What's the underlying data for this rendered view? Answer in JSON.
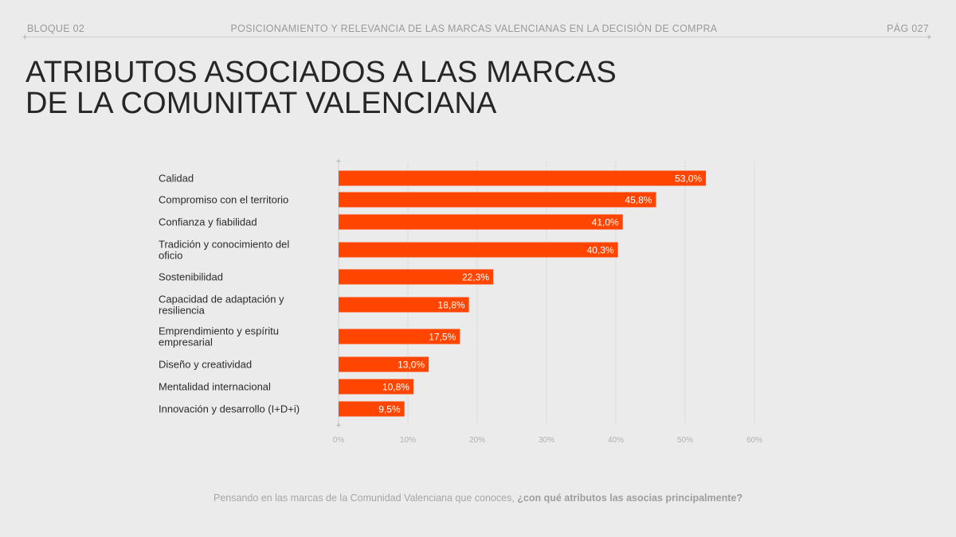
{
  "header": {
    "left": "BLOQUE 02",
    "center": "POSICIONAMIENTO Y RELEVANCIA DE LAS MARCAS VALENCIANAS EN LA DECISIÓN DE COMPRA",
    "right": "PÁG 027"
  },
  "title": {
    "line1": "ATRIBUTOS ASOCIADOS A LAS MARCAS",
    "line2": "DE LA COMUNITAT VALENCIANA"
  },
  "footnote": {
    "plain": "Pensando en las marcas de la Comunidad Valenciana que conoces, ",
    "bold": "¿con qué atributos las asocias principalmente?"
  },
  "colors": {
    "bar": "#ff4500",
    "bar_label": "#ffffff",
    "category_text": "#2b2b2b",
    "tick_text": "#b0b0b0",
    "grid": "#dedede"
  },
  "chart_data": {
    "type": "bar",
    "orientation": "horizontal",
    "categories": [
      [
        "Calidad"
      ],
      [
        "Compromiso con el territorio"
      ],
      [
        "Confianza y fiabilidad"
      ],
      [
        "Tradición y conocimiento del",
        "oficio"
      ],
      [
        "Sostenibilidad"
      ],
      [
        "Capacidad de adaptación y",
        "resiliencia"
      ],
      [
        "Emprendimiento y espíritu",
        "empresarial"
      ],
      [
        "Diseño y creatividad"
      ],
      [
        "Mentalidad internacional"
      ],
      [
        "Innovación y desarrollo (I+D+i)"
      ]
    ],
    "values": [
      53.0,
      45.8,
      41.0,
      40.3,
      22.3,
      18.8,
      17.5,
      13.0,
      10.8,
      9.5
    ],
    "value_labels": [
      "53,0%",
      "45,8%",
      "41,0%",
      "40,3%",
      "22,3%",
      "18,8%",
      "17,5%",
      "13,0%",
      "10,8%",
      "9,5%"
    ],
    "xlim": [
      0,
      60
    ],
    "xticks": [
      0,
      10,
      20,
      30,
      40,
      50,
      60
    ],
    "xtick_labels": [
      "0%",
      "10%",
      "20%",
      "30%",
      "40%",
      "50%",
      "60%"
    ],
    "grid": true
  }
}
